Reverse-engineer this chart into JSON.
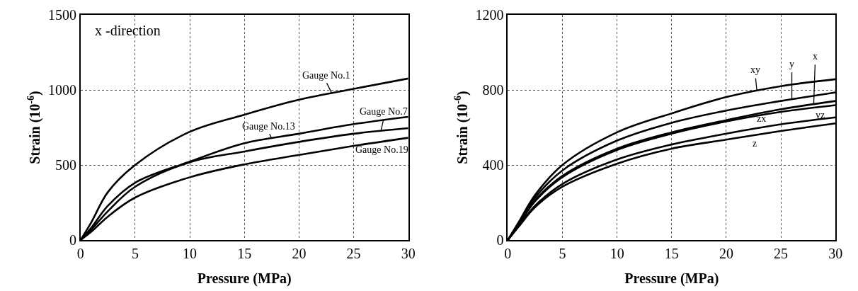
{
  "chart_data": [
    {
      "type": "line",
      "x": [
        0,
        1,
        2.5,
        5,
        10,
        15,
        20,
        25,
        30
      ],
      "xlabel": "Pressure (MPa)",
      "ylabel": "Strain (10$^{-6}$)",
      "xlim": [
        0,
        30
      ],
      "xticks": [
        0,
        5,
        10,
        15,
        20,
        25,
        30
      ],
      "ylim": [
        0,
        1500
      ],
      "yticks": [
        0,
        500,
        1000,
        1500
      ],
      "grid": true,
      "legend": false,
      "annotations": [
        "x -direction"
      ],
      "series": [
        {
          "name": "Gauge No.1",
          "color": "#000000",
          "values": [
            0,
            120,
            319,
            500,
            721,
            835,
            935,
            1007,
            1076
          ]
        },
        {
          "name": "Gauge No.13",
          "color": "#000000",
          "values": [
            0,
            83,
            228,
            382,
            522,
            645,
            708,
            772,
            821
          ]
        },
        {
          "name": "Gauge No.7",
          "color": "#000000",
          "values": [
            0,
            70,
            192,
            355,
            518,
            590,
            654,
            708,
            745
          ]
        },
        {
          "name": "Gauge No.19",
          "color": "#000000",
          "values": [
            0,
            56,
            156,
            283,
            418,
            504,
            567,
            627,
            681
          ]
        }
      ]
    },
    {
      "type": "line",
      "x": [
        0,
        1,
        2.5,
        5,
        10,
        15,
        20,
        25,
        30
      ],
      "xlabel": "Pressure (MPa)",
      "ylabel": "Strain (10$^{-6}$)",
      "xlim": [
        0,
        30
      ],
      "xticks": [
        0,
        5,
        10,
        15,
        20,
        25,
        30
      ],
      "ylim": [
        0,
        1200
      ],
      "yticks": [
        0,
        400,
        800,
        1200
      ],
      "grid": true,
      "legend": false,
      "series": [
        {
          "name": "xy",
          "color": "#000000",
          "values": [
            0,
            96,
            240,
            400,
            574,
            675,
            762,
            820,
            857
          ]
        },
        {
          "name": "y",
          "color": "#000000",
          "values": [
            0,
            90,
            226,
            371,
            530,
            625,
            690,
            741,
            787
          ]
        },
        {
          "name": "x",
          "color": "#000000",
          "values": [
            0,
            85,
            212,
            342,
            487,
            574,
            639,
            697,
            741
          ]
        },
        {
          "name": "yz",
          "color": "#000000",
          "values": [
            0,
            83,
            207,
            335,
            480,
            567,
            632,
            683,
            719
          ]
        },
        {
          "name": "zx",
          "color": "#000000",
          "values": [
            0,
            75,
            183,
            299,
            429,
            509,
            567,
            617,
            654
          ]
        },
        {
          "name": "z",
          "color": "#000000",
          "values": [
            0,
            72,
            175,
            284,
            407,
            487,
            535,
            581,
            622
          ]
        }
      ]
    }
  ]
}
